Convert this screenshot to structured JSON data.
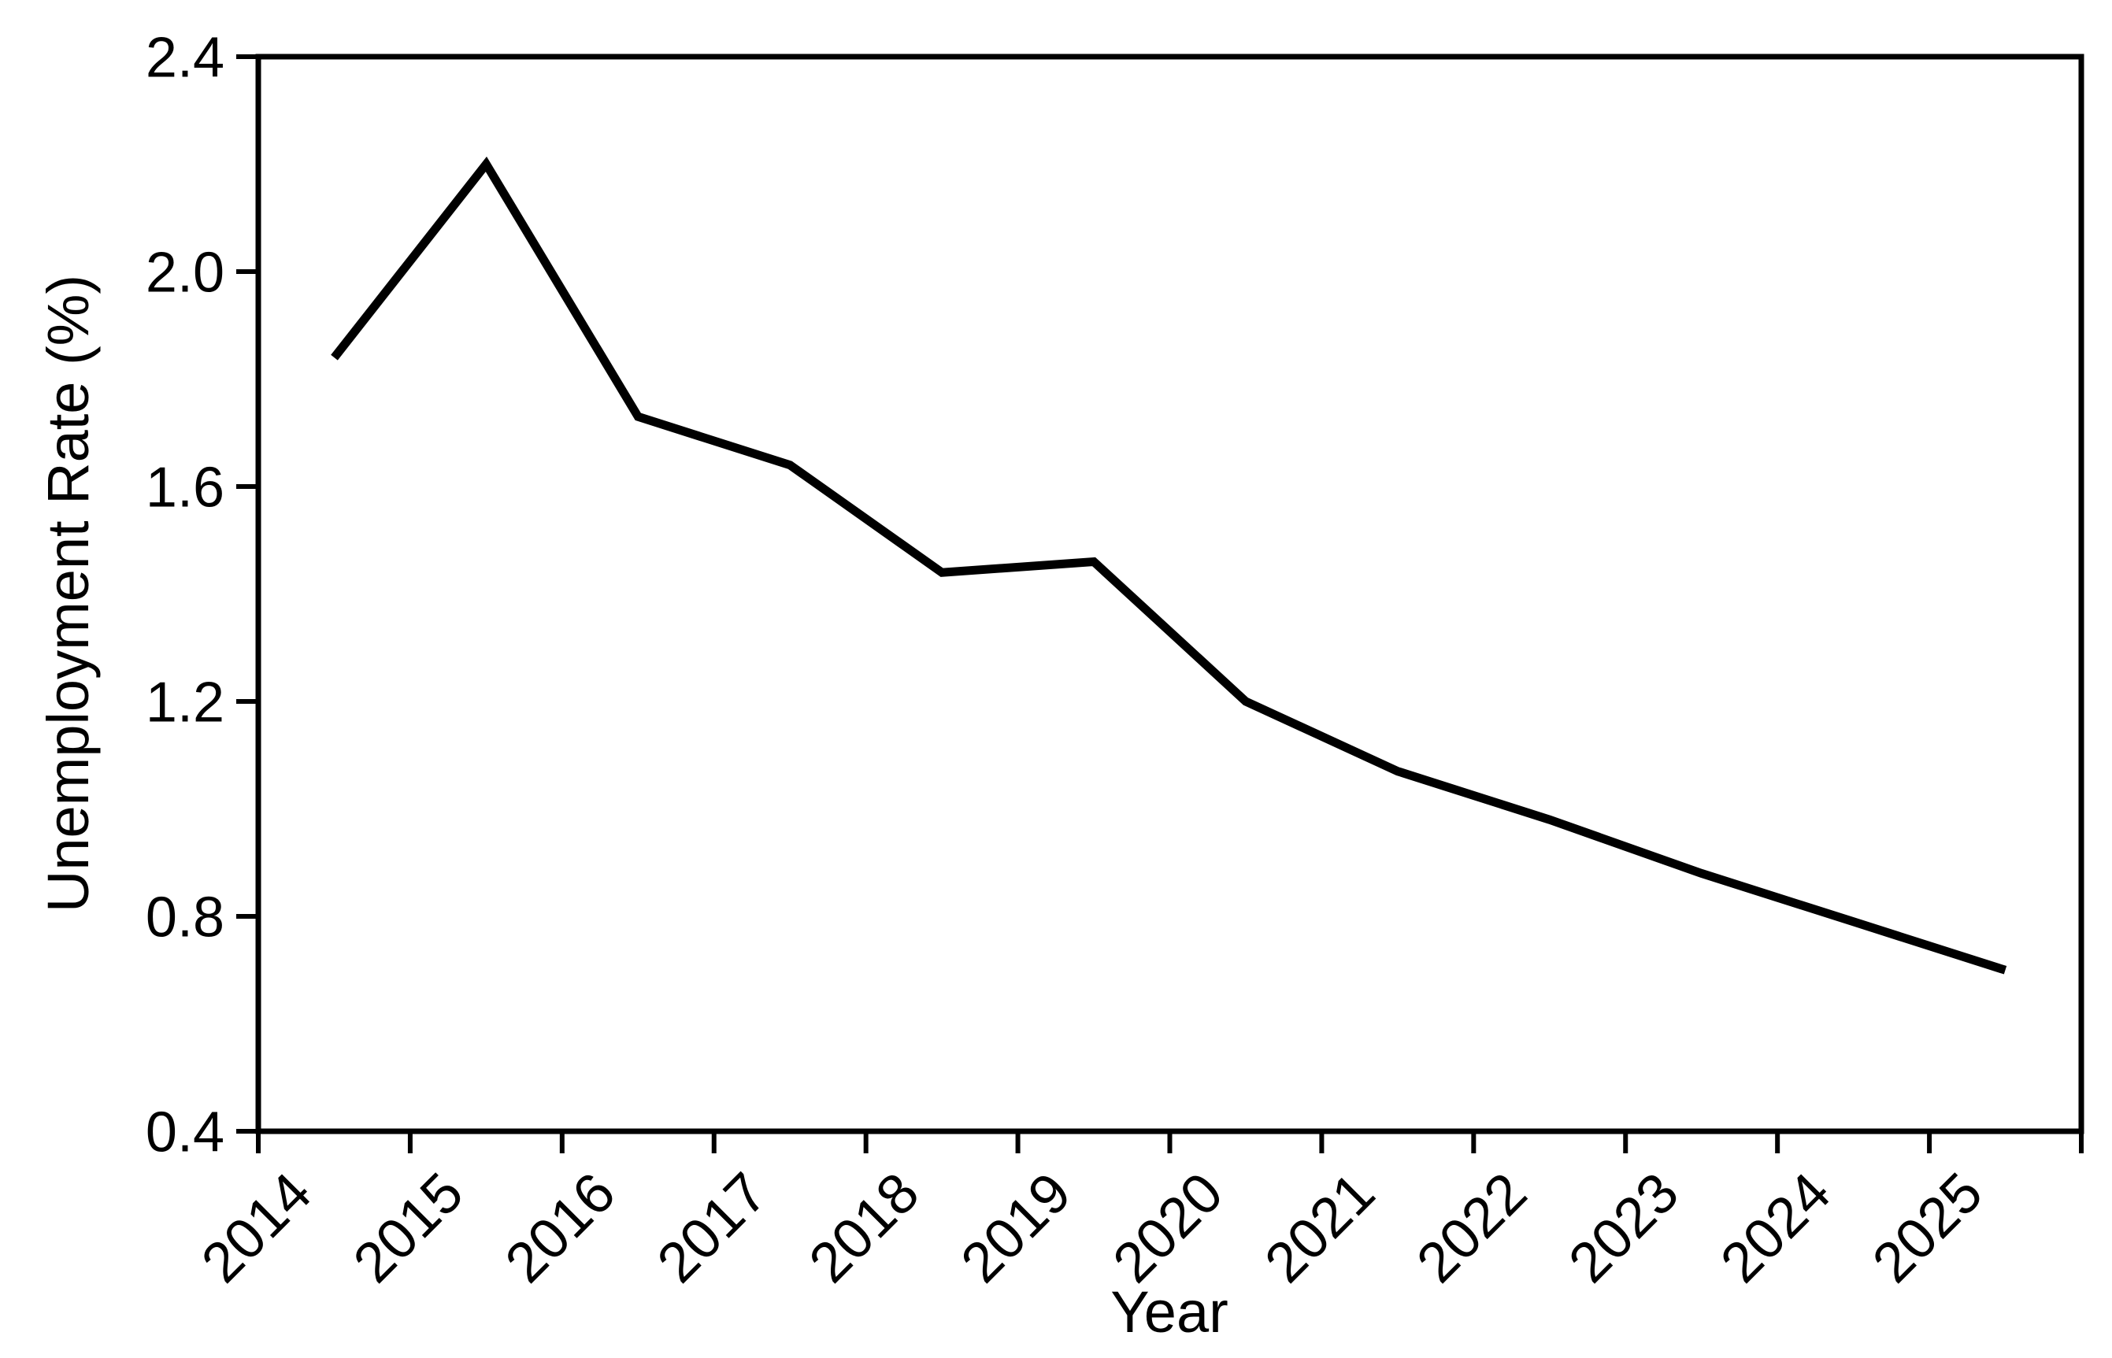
{
  "figure": {
    "background": "#ffffff",
    "line_color": "#000000",
    "axis_color": "#000000",
    "text_color": "#000000"
  },
  "chart_data": {
    "type": "line",
    "title": "",
    "xlabel": "Year",
    "ylabel": "Unemployment Rate (%)",
    "categories": [
      "2014",
      "2015",
      "2016",
      "2017",
      "2018",
      "2019",
      "2020",
      "2021",
      "2022",
      "2023",
      "2024",
      "2025"
    ],
    "values": [
      1.84,
      2.2,
      1.73,
      1.64,
      1.44,
      1.46,
      1.2,
      1.07,
      0.98,
      0.88,
      0.79,
      0.7
    ],
    "series_name": "Unemployment Rate",
    "ylim": [
      0.4,
      2.4
    ],
    "yticks": [
      0.4,
      0.8,
      1.2,
      1.6,
      2.0,
      2.4
    ],
    "ytick_labels": [
      "0.4",
      "0.8",
      "1.2",
      "1.6",
      "2.0",
      "2.4"
    ],
    "grid": false,
    "legend_position": "none",
    "x_tick_style": "band-boundaries",
    "xtick_label_rotation_deg": 45,
    "box": true
  }
}
